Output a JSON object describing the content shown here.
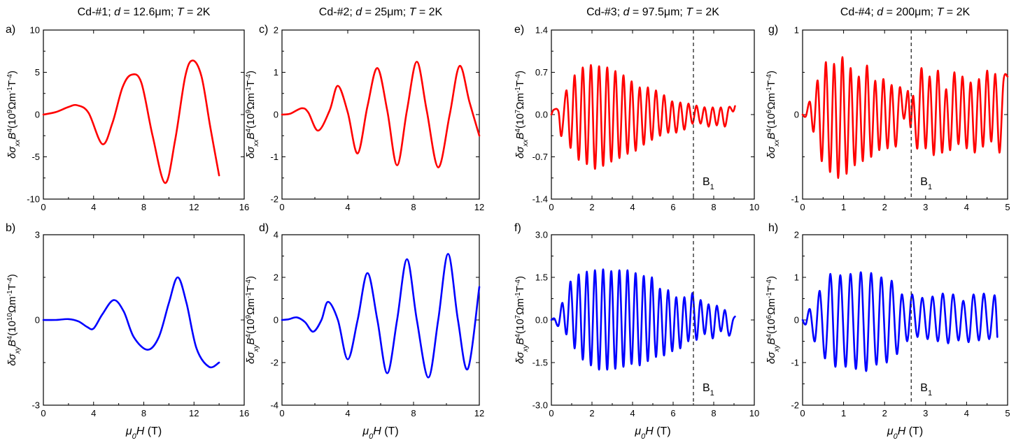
{
  "chart_data": [
    {
      "id": "a",
      "panel_label": "a)",
      "type": "line",
      "title": "",
      "sample": "Cd-#1",
      "thickness": "12.6μm",
      "temperature": "2K",
      "xlabel": "μ0H (T)",
      "ylabel": "δσxxB4(10^9Ωm^-1T^-4)",
      "xlim": [
        0,
        16
      ],
      "ylim": [
        -10,
        10
      ],
      "xticks": [
        "0",
        "4",
        "8",
        "12",
        "16"
      ],
      "yticks": [
        "-10",
        "-5",
        "0",
        "5",
        "10"
      ],
      "line_color": "#ff0000",
      "series": [
        {
          "name": "dsxx",
          "x": [
            0,
            1,
            2,
            2.7,
            3.6,
            4.7,
            5.5,
            6.3,
            7.0,
            7.8,
            8.7,
            9.7,
            10.5,
            11.3,
            11.9,
            12.6,
            13.3,
            14.0
          ],
          "y": [
            0,
            0.3,
            0.9,
            1.1,
            0.2,
            -3.5,
            -1.0,
            3.2,
            4.7,
            3.8,
            -2.5,
            -8.1,
            -3.0,
            4.5,
            6.4,
            4.5,
            -1.5,
            -7.2
          ]
        }
      ]
    },
    {
      "id": "b",
      "panel_label": "b)",
      "type": "line",
      "xlabel": "μ0H (T)",
      "ylabel": "δσxyB4(10^10Ωm^-1T^-4)",
      "xlim": [
        0,
        16
      ],
      "ylim": [
        -3,
        3
      ],
      "xticks": [
        "0",
        "4",
        "8",
        "12",
        "16"
      ],
      "yticks": [
        "-3",
        "0",
        "3"
      ],
      "line_color": "#0000ff",
      "series": [
        {
          "name": "dsxy",
          "x": [
            0,
            1,
            2,
            2.8,
            3.5,
            4.0,
            4.7,
            5.6,
            6.4,
            7.2,
            8.3,
            9.2,
            10.0,
            10.7,
            11.4,
            12.2,
            13.2,
            14.0
          ],
          "y": [
            0,
            0,
            0.03,
            -0.05,
            -0.25,
            -0.3,
            0.2,
            0.7,
            0.3,
            -0.6,
            -1.05,
            -0.6,
            0.6,
            1.5,
            0.6,
            -1.0,
            -1.65,
            -1.5
          ]
        }
      ]
    },
    {
      "id": "c",
      "panel_label": "c)",
      "type": "line",
      "sample": "Cd-#2",
      "thickness": "25μm",
      "temperature": "2K",
      "xlabel": "μ0H (T)",
      "ylabel": "δσxxB4(10^9Ωm^-1T^-4)",
      "xlim": [
        0,
        12
      ],
      "ylim": [
        -2,
        2
      ],
      "xticks": [
        "0",
        "4",
        "8",
        "12"
      ],
      "yticks": [
        "-2",
        "-1",
        "0",
        "1",
        "2"
      ],
      "line_color": "#ff0000",
      "series": [
        {
          "name": "dsxx",
          "x": [
            0,
            0.5,
            1.2,
            1.6,
            2.2,
            2.9,
            3.4,
            4.0,
            4.6,
            5.2,
            5.8,
            6.4,
            7.0,
            7.6,
            8.2,
            8.8,
            9.5,
            10.2,
            10.8,
            11.4,
            12.0
          ],
          "y": [
            0,
            0.02,
            0.15,
            0.05,
            -0.38,
            0.1,
            0.68,
            0.05,
            -0.92,
            0.2,
            1.1,
            0.1,
            -1.2,
            0.1,
            1.25,
            0.1,
            -1.25,
            0.0,
            1.15,
            0.3,
            -0.5
          ]
        }
      ]
    },
    {
      "id": "d",
      "panel_label": "d)",
      "type": "line",
      "xlabel": "μ0H (T)",
      "ylabel": "δσxyB4(10^9Ωm^-1T^-4)",
      "xlim": [
        0,
        12
      ],
      "ylim": [
        -4,
        4
      ],
      "xticks": [
        "0",
        "4",
        "8",
        "12"
      ],
      "yticks": [
        "-4",
        "-2",
        "0",
        "2",
        "4"
      ],
      "line_color": "#0000ff",
      "series": [
        {
          "name": "dsxy",
          "x": [
            0,
            0.4,
            0.9,
            1.4,
            1.9,
            2.4,
            2.8,
            3.4,
            4.0,
            4.6,
            5.2,
            5.8,
            6.4,
            7.0,
            7.6,
            8.2,
            8.9,
            9.5,
            10.1,
            10.7,
            11.3,
            12.0
          ],
          "y": [
            0,
            0.03,
            0.12,
            -0.1,
            -0.55,
            0.0,
            0.85,
            0.0,
            -1.85,
            0.0,
            2.2,
            0.0,
            -2.5,
            0.0,
            2.85,
            0.0,
            -2.7,
            0.0,
            3.1,
            0.0,
            -2.3,
            1.55
          ]
        }
      ]
    },
    {
      "id": "e",
      "panel_label": "e)",
      "type": "line",
      "sample": "Cd-#3",
      "thickness": "97.5μm",
      "temperature": "2K",
      "xlabel": "μ0H (T)",
      "ylabel": "δσxxB4(10^7Ωm^-1T^-4)",
      "xlim": [
        0,
        10
      ],
      "ylim": [
        -1.4,
        1.4
      ],
      "xticks": [
        "0",
        "2",
        "4",
        "6",
        "8",
        "10"
      ],
      "yticks": [
        "-1.4",
        "-0.7",
        "0.0",
        "0.7",
        "1.4"
      ],
      "line_color": "#ff0000",
      "marker_line_x": 7.0,
      "marker_label": "B1",
      "series": [
        {
          "name": "dsxx",
          "x": [
            0,
            0.12,
            0.35,
            0.5,
            0.75,
            0.95,
            1.15,
            1.35,
            1.55,
            1.75,
            1.95,
            2.15,
            2.35,
            2.55,
            2.75,
            2.95,
            3.15,
            3.35,
            3.55,
            3.75,
            3.95,
            4.15,
            4.35,
            4.55,
            4.75,
            4.95,
            5.15,
            5.35,
            5.55,
            5.75,
            5.95,
            6.15,
            6.35,
            6.55,
            6.75,
            6.95,
            7.15,
            7.35,
            7.55,
            7.75,
            7.95,
            8.15,
            8.35,
            8.55,
            8.75,
            8.95,
            9.05
          ],
          "y": [
            0,
            0.08,
            0.05,
            -0.35,
            0.4,
            -0.55,
            0.65,
            -0.75,
            0.78,
            -0.82,
            0.82,
            -0.9,
            0.8,
            -0.85,
            0.78,
            -0.78,
            0.72,
            -0.72,
            0.65,
            -0.65,
            0.55,
            -0.6,
            0.45,
            -0.5,
            0.45,
            -0.42,
            0.4,
            -0.35,
            0.32,
            -0.3,
            0.22,
            -0.3,
            0.2,
            -0.25,
            0.18,
            -0.15,
            0.15,
            -0.15,
            0.12,
            -0.2,
            0.12,
            -0.18,
            0.12,
            -0.2,
            0.12,
            0.05,
            0.14
          ]
        }
      ]
    },
    {
      "id": "f",
      "panel_label": "f)",
      "type": "line",
      "xlabel": "μ0H (T)",
      "ylabel": "δσxyB4(10^7Ωm^-1T^-4)",
      "xlim": [
        0,
        10
      ],
      "ylim": [
        -3.0,
        3.0
      ],
      "xticks": [
        "0",
        "2",
        "4",
        "6",
        "8",
        "10"
      ],
      "yticks": [
        "-3.0",
        "-1.5",
        "0.0",
        "1.5",
        "3.0"
      ],
      "line_color": "#0000ff",
      "marker_line_x": 7.0,
      "marker_label": "B1",
      "series": [
        {
          "name": "dsxy",
          "x": [
            0,
            0.15,
            0.35,
            0.55,
            0.75,
            0.95,
            1.15,
            1.35,
            1.55,
            1.75,
            1.95,
            2.15,
            2.35,
            2.55,
            2.75,
            2.95,
            3.15,
            3.35,
            3.55,
            3.75,
            3.95,
            4.15,
            4.35,
            4.55,
            4.75,
            4.95,
            5.15,
            5.35,
            5.55,
            5.75,
            5.95,
            6.15,
            6.35,
            6.55,
            6.75,
            6.95,
            7.15,
            7.35,
            7.55,
            7.75,
            7.95,
            8.15,
            8.35,
            8.55,
            8.75,
            8.95,
            9.05
          ],
          "y": [
            0,
            0.05,
            -0.2,
            0.6,
            -0.5,
            1.35,
            -1.0,
            1.6,
            -1.4,
            1.7,
            -1.6,
            1.75,
            -1.75,
            1.78,
            -1.75,
            1.72,
            -1.72,
            1.75,
            -1.65,
            1.75,
            -1.55,
            1.65,
            -1.6,
            1.55,
            -1.45,
            1.5,
            -1.3,
            1.1,
            -1.25,
            1.05,
            -1.1,
            0.8,
            -1.0,
            0.8,
            -0.75,
            0.95,
            -0.7,
            0.7,
            -0.5,
            0.55,
            -0.65,
            0.5,
            -0.4,
            0.35,
            -0.55,
            0.0,
            0.12
          ]
        }
      ]
    },
    {
      "id": "g",
      "panel_label": "g)",
      "type": "line",
      "sample": "Cd-#4",
      "thickness": "200μm",
      "temperature": "2K",
      "xlabel": "μ0H (T)",
      "ylabel": "δσxxB4(10^6Ωm^-1T^-4)",
      "xlim": [
        0,
        5
      ],
      "ylim": [
        -1,
        1
      ],
      "xticks": [
        "0",
        "1",
        "2",
        "3",
        "4",
        "5"
      ],
      "yticks": [
        "-1",
        "0",
        "1"
      ],
      "line_color": "#ff0000",
      "marker_line_x": 2.65,
      "marker_label": "B1",
      "series": [
        {
          "name": "dsxx",
          "x": [
            0,
            0.08,
            0.18,
            0.27,
            0.37,
            0.47,
            0.57,
            0.67,
            0.77,
            0.87,
            0.97,
            1.07,
            1.17,
            1.27,
            1.37,
            1.47,
            1.57,
            1.67,
            1.77,
            1.87,
            1.97,
            2.07,
            2.17,
            2.27,
            2.37,
            2.47,
            2.57,
            2.63,
            2.7,
            2.8,
            2.9,
            3.0,
            3.1,
            3.2,
            3.3,
            3.4,
            3.5,
            3.6,
            3.7,
            3.8,
            3.9,
            4.0,
            4.1,
            4.2,
            4.3,
            4.4,
            4.5,
            4.6,
            4.7,
            4.8,
            4.9,
            5.0
          ],
          "y": [
            0,
            -0.02,
            0.15,
            -0.2,
            0.4,
            -0.55,
            0.62,
            -0.68,
            0.6,
            -0.75,
            0.68,
            -0.7,
            0.55,
            -0.6,
            0.45,
            -0.55,
            0.58,
            -0.5,
            0.4,
            -0.42,
            0.42,
            -0.4,
            0.35,
            -0.38,
            0.32,
            -0.05,
            0.28,
            -0.15,
            0.22,
            -0.4,
            0.55,
            -0.4,
            0.45,
            -0.48,
            0.52,
            -0.45,
            0.3,
            -0.42,
            0.5,
            -0.35,
            0.45,
            -0.4,
            0.38,
            -0.45,
            0.42,
            -0.38,
            0.52,
            -0.32,
            0.48,
            -0.45,
            0.4,
            0.45
          ]
        }
      ]
    },
    {
      "id": "h",
      "panel_label": "h)",
      "type": "line",
      "xlabel": "μ0H (T)",
      "ylabel": "δσxyB4(10^6Ωm^-1T^-4)",
      "xlim": [
        0,
        5
      ],
      "ylim": [
        -2,
        2
      ],
      "xticks": [
        "0",
        "1",
        "2",
        "3",
        "4",
        "5"
      ],
      "yticks": [
        "-2",
        "-1",
        "0",
        "1",
        "2"
      ],
      "line_color": "#0000ff",
      "marker_line_x": 2.65,
      "marker_label": "B1",
      "series": [
        {
          "name": "dsxy",
          "x": [
            0,
            0.08,
            0.18,
            0.3,
            0.42,
            0.55,
            0.68,
            0.8,
            0.92,
            1.05,
            1.17,
            1.3,
            1.42,
            1.55,
            1.67,
            1.8,
            1.92,
            2.05,
            2.17,
            2.3,
            2.42,
            2.55,
            2.67,
            2.8,
            2.92,
            3.05,
            3.17,
            3.3,
            3.42,
            3.55,
            3.67,
            3.8,
            3.92,
            4.05,
            4.17,
            4.3,
            4.42,
            4.55,
            4.68,
            4.75
          ],
          "y": [
            0,
            -0.1,
            0.25,
            -0.5,
            0.68,
            -0.9,
            1.08,
            -1.1,
            1.05,
            -1.1,
            1.08,
            -1.15,
            1.12,
            -1.2,
            1.1,
            -1.05,
            1.0,
            -1.0,
            0.92,
            -0.8,
            0.6,
            -0.5,
            0.6,
            -0.4,
            0.52,
            -0.45,
            0.55,
            -0.5,
            0.62,
            -0.55,
            0.6,
            -0.48,
            0.45,
            -0.52,
            0.6,
            -0.48,
            0.62,
            -0.45,
            0.58,
            -0.4
          ]
        }
      ]
    }
  ]
}
